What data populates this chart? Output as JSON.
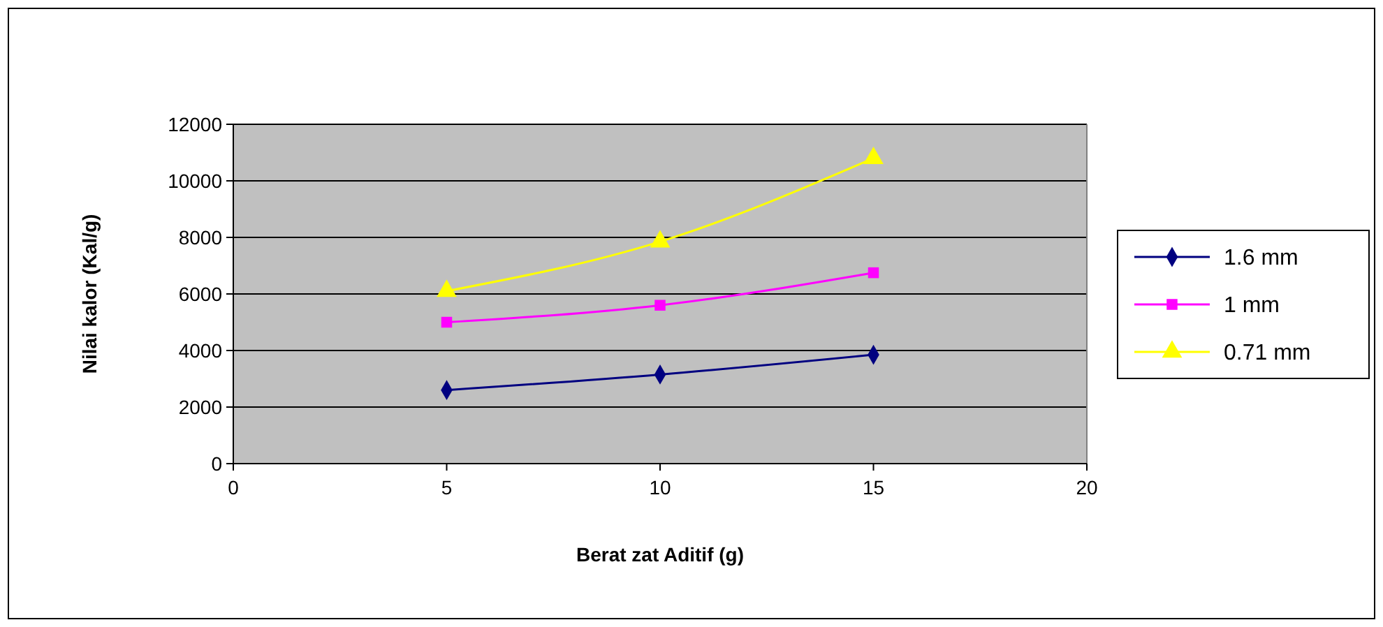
{
  "chart_data": {
    "type": "line",
    "xlabel": "Berat zat Aditif (g)",
    "ylabel": "Nilai kalor (Kal/g)",
    "x": [
      5,
      10,
      15
    ],
    "series": [
      {
        "name": "1.6 mm",
        "color": "#000080",
        "marker": "diamond",
        "values": [
          2600,
          3150,
          3850
        ]
      },
      {
        "name": "1 mm",
        "color": "#ff00ff",
        "marker": "square",
        "values": [
          5000,
          5600,
          6750
        ]
      },
      {
        "name": "0.71 mm",
        "color": "#ffff00",
        "marker": "triangle",
        "values": [
          6100,
          7850,
          10800
        ]
      }
    ],
    "xlim": [
      0,
      20
    ],
    "xticks": [
      0,
      5,
      10,
      15,
      20
    ],
    "ylim": [
      0,
      12000
    ],
    "yticks": [
      0,
      2000,
      4000,
      6000,
      8000,
      10000,
      12000
    ],
    "grid": "y",
    "legend": "right"
  }
}
